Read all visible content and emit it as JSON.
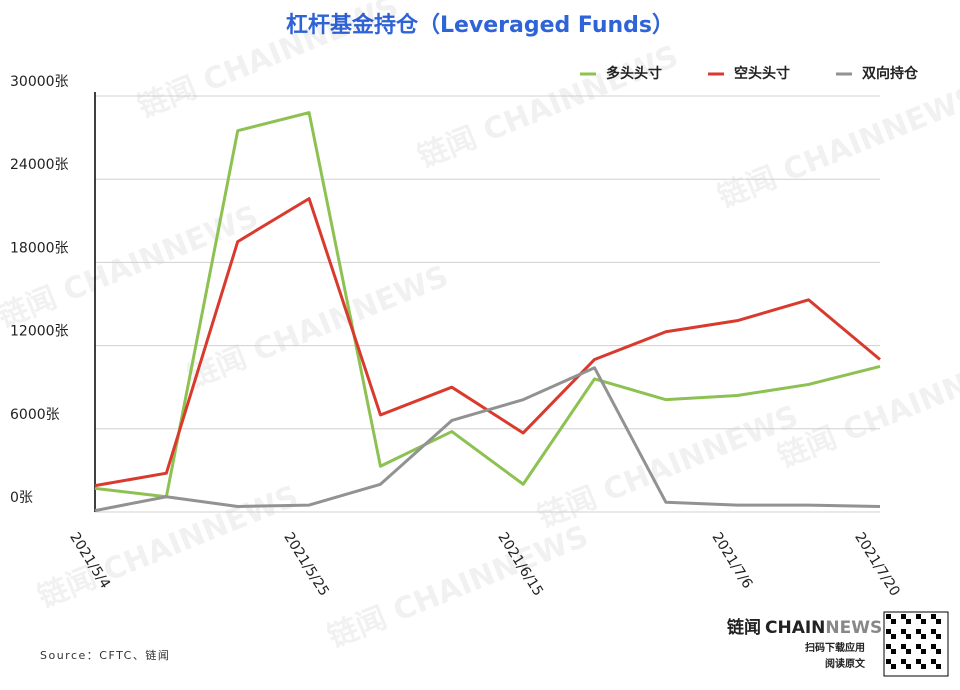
{
  "chart_data": {
    "type": "line",
    "title": "杠杆基金持仓（Leveraged Funds）",
    "categories": [
      "2021/5/4",
      null,
      null,
      "2021/5/25",
      null,
      null,
      "2021/6/15",
      null,
      null,
      "2021/7/6",
      null,
      "2021/7/20"
    ],
    "series": [
      {
        "name": "多头头寸",
        "color": "#8dc152",
        "values": [
          1700,
          1100,
          27500,
          28800,
          3300,
          5800,
          2000,
          9600,
          8100,
          8400,
          9200,
          10500
        ]
      },
      {
        "name": "空头头寸",
        "color": "#d93a2e",
        "values": [
          1900,
          2800,
          19500,
          22600,
          7000,
          9000,
          5700,
          11000,
          13000,
          13800,
          15300,
          11000
        ]
      },
      {
        "name": "双向持仓",
        "color": "#929292",
        "values": [
          100,
          1100,
          400,
          500,
          2000,
          6600,
          8100,
          10400,
          700,
          500,
          500,
          400
        ]
      }
    ],
    "ylim": [
      0,
      30000
    ],
    "yticks": [
      {
        "value": 0,
        "label": "0张"
      },
      {
        "value": 6000,
        "label": "6000张"
      },
      {
        "value": 12000,
        "label": "12000张"
      },
      {
        "value": 18000,
        "label": "18000张"
      },
      {
        "value": 24000,
        "label": "24000张"
      },
      {
        "value": 30000,
        "label": "30000张"
      }
    ],
    "grid": true,
    "legend": "top-right",
    "source": "Source：CFTC、链闻",
    "watermark": "链闻 CHAINNEWS",
    "logo": {
      "brand": "链闻",
      "name_a": "CHAIN",
      "name_b": "NEWS",
      "line1": "扫码下载应用",
      "line2": "阅读原文"
    }
  }
}
